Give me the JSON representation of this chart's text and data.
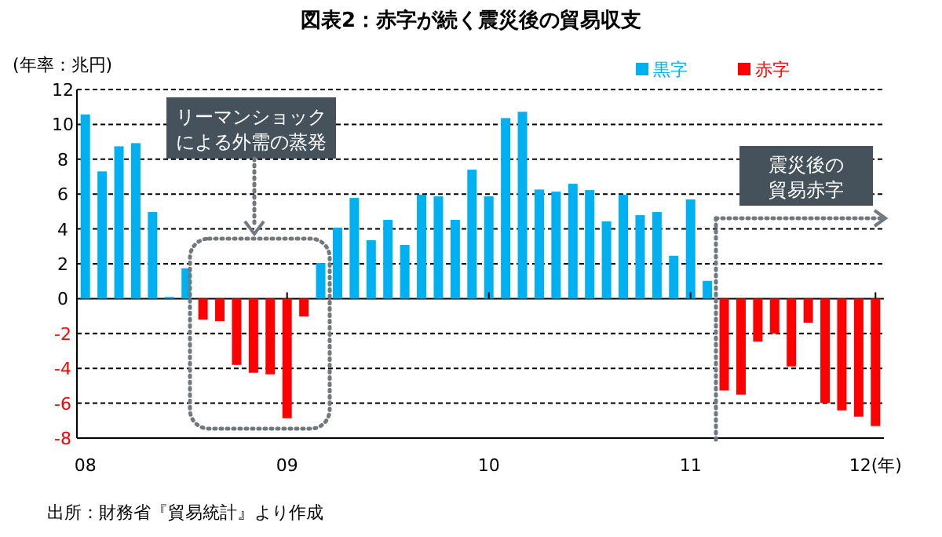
{
  "chart_data": {
    "type": "bar",
    "title": "図表2：赤字が続く震災後の貿易収支",
    "ylabel": "(年率：兆円)",
    "categories": [
      "08",
      null,
      null,
      null,
      null,
      null,
      null,
      null,
      null,
      null,
      null,
      null,
      "09",
      null,
      null,
      null,
      null,
      null,
      null,
      null,
      null,
      null,
      null,
      null,
      "10",
      null,
      null,
      null,
      null,
      null,
      null,
      null,
      null,
      null,
      null,
      null,
      "11",
      null,
      null,
      null,
      null,
      null,
      null,
      null,
      null,
      null,
      null,
      "12(年)"
    ],
    "series": [
      {
        "name": "黒字",
        "color": "#00b0f0",
        "values": [
          10.57,
          7.3,
          8.74,
          8.92,
          4.97,
          0.1,
          1.74,
          null,
          null,
          null,
          null,
          null,
          null,
          null,
          2.04,
          4.07,
          5.78,
          3.35,
          4.52,
          3.08,
          5.96,
          5.87,
          4.52,
          7.4,
          5.87,
          10.36,
          10.72,
          6.26,
          6.14,
          6.59,
          6.23,
          4.43,
          5.96,
          4.79,
          4.97,
          2.46,
          5.69,
          1.02,
          null,
          null,
          null,
          null,
          null,
          null,
          null,
          null,
          null,
          null
        ]
      },
      {
        "name": "赤字",
        "color": "#ff0000",
        "values": [
          null,
          null,
          null,
          null,
          null,
          null,
          null,
          -1.2,
          -1.29,
          -3.8,
          -4.25,
          -4.34,
          -6.86,
          -1.02,
          null,
          null,
          null,
          null,
          null,
          null,
          null,
          null,
          null,
          null,
          null,
          null,
          null,
          null,
          null,
          null,
          null,
          null,
          null,
          null,
          null,
          null,
          null,
          null,
          -5.27,
          -5.51,
          -2.46,
          -2.0,
          -3.89,
          -1.38,
          -5.99,
          -6.41,
          -6.77,
          -7.31
        ]
      }
    ],
    "ylim": [
      -8,
      12
    ],
    "yticks": [
      -8,
      -6,
      -4,
      -2,
      0,
      2,
      4,
      6,
      8,
      10,
      12
    ],
    "grid": "y",
    "legend": "top right",
    "annotations": [
      "リーマンショックによる外需の蒸発",
      "震災後の貿易赤字",
      "出所：財務省『貿易統計』より作成"
    ]
  }
}
